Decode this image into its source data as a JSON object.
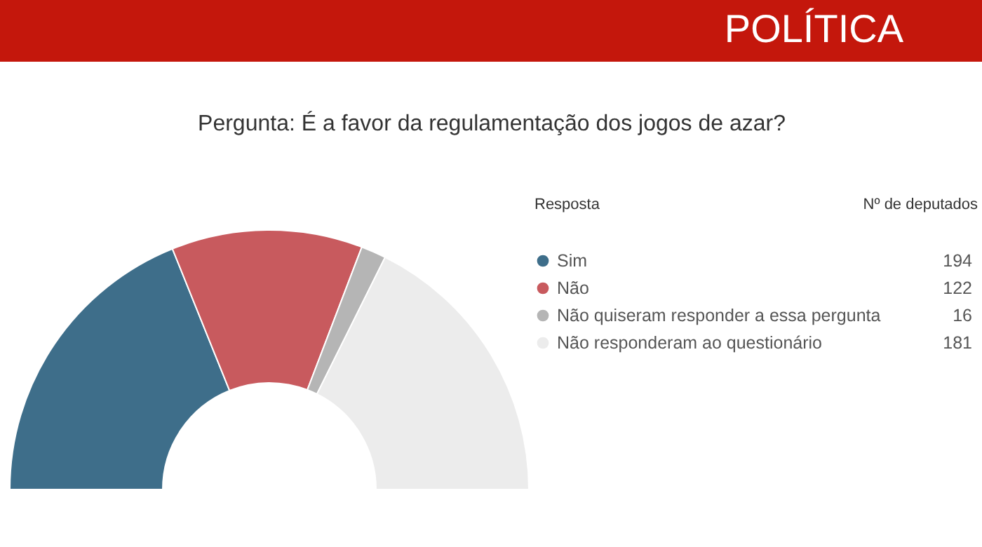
{
  "chart_data": {
    "type": "donut",
    "title": "Pergunta: É a favor da regulamentação dos jogos de azar?",
    "categories": [
      "Sim",
      "Não",
      "Não quiseram responder a essa pergunta",
      "Não responderam ao questionário"
    ],
    "values": [
      194,
      122,
      16,
      181
    ],
    "colors": [
      "#3e6e8a",
      "#c85a5e",
      "#b5b5b5",
      "#ececec"
    ],
    "legend": "right",
    "legend_title": "Resposta",
    "data_labels": true,
    "annotations": [
      "POLÍTICA",
      "Nº de deputados"
    ]
  }
}
